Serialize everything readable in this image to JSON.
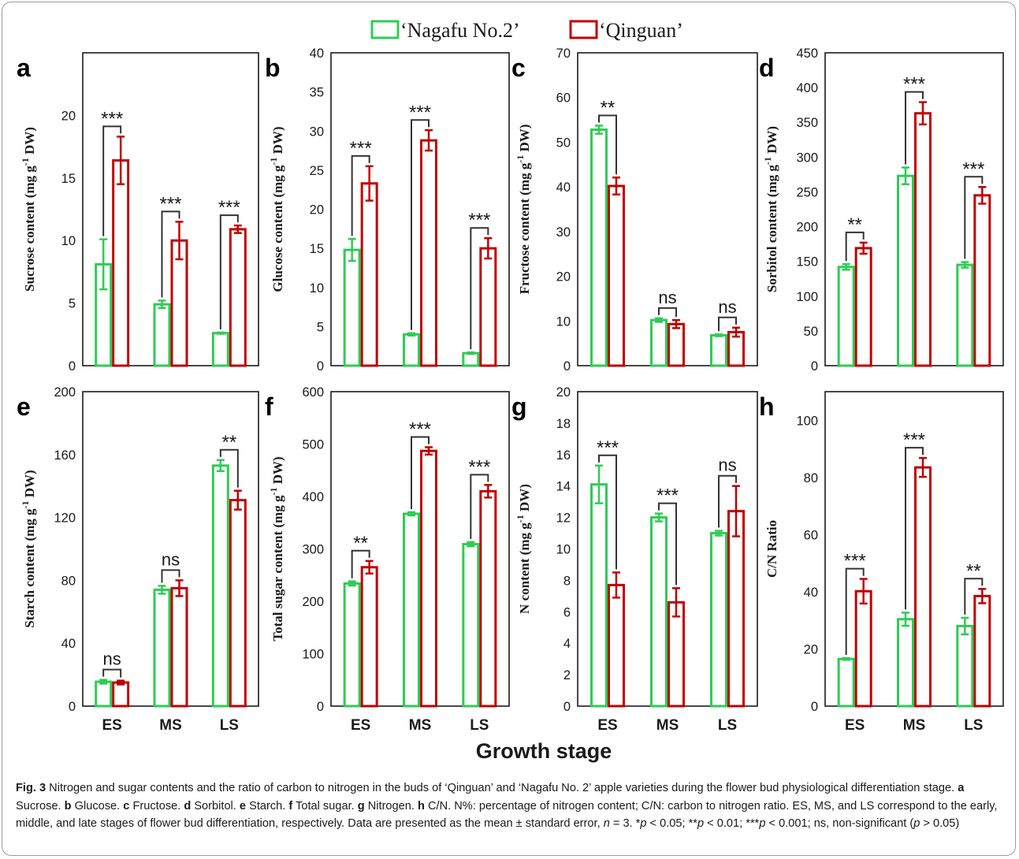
{
  "legend": {
    "items": [
      {
        "label": "‘Nagafu No.2’",
        "color": "#2ecc55"
      },
      {
        "label": "‘Qinguan’",
        "color": "#c00000"
      }
    ],
    "position": "top-center"
  },
  "shared_xlabel": "Growth stage",
  "caption": {
    "fig_label": "Fig. 3",
    "main": " Nitrogen and sugar contents and the ratio of carbon to nitrogen in the buds of ‘Qinguan’ and ‘Nagafu No. 2’ apple varieties during the flower bud physiological differentiation stage. ",
    "panels": [
      {
        "letter": "a",
        "text": " Sucrose. "
      },
      {
        "letter": "b",
        "text": " Glucose. "
      },
      {
        "letter": "c",
        "text": " Fructose. "
      },
      {
        "letter": "d",
        "text": " Sorbitol. "
      },
      {
        "letter": "e",
        "text": " Starch. "
      },
      {
        "letter": "f",
        "text": " Total sugar. "
      },
      {
        "letter": "g",
        "text": " Nitrogen. "
      },
      {
        "letter": "h",
        "text": " C/N. "
      }
    ],
    "rest1": "N%: percentage of nitrogen content; C/N: carbon to nitrogen ratio. ES, MS, and LS correspond to the early, middle, and late stages of flower bud differentiation, respectively. Data are presented as the mean ± standard error, ",
    "n_var": "n",
    "n_rest": " = 3. *",
    "p1": "p",
    "p1_rest": " < 0.05; **",
    "p2": "p",
    "p2_rest": " < 0.01; ***",
    "p3": "p",
    "p3_rest": " < 0.001; ns, non-significant (",
    "p4": "p",
    "p4_rest": " > 0.05)"
  },
  "chart_data": [
    {
      "panel": "a",
      "type": "bar",
      "categories": [
        "ES",
        "MS",
        "LS"
      ],
      "ylabel": "Sucrose content (mg g-1 DW)",
      "ylim": [
        0,
        25
      ],
      "yticks": [
        0,
        5,
        10,
        15,
        20
      ],
      "show_x": false,
      "series": [
        {
          "name": "‘Nagafu No.2’",
          "values": [
            8.1,
            4.9,
            2.6
          ],
          "errors": [
            2.0,
            0.3,
            0.05
          ]
        },
        {
          "name": "‘Qinguan’",
          "values": [
            16.4,
            10.0,
            10.9
          ],
          "errors": [
            1.9,
            1.5,
            0.3
          ]
        }
      ],
      "significance": [
        "***",
        "***",
        "***"
      ]
    },
    {
      "panel": "b",
      "type": "bar",
      "categories": [
        "ES",
        "MS",
        "LS"
      ],
      "ylabel": "Glucose content (mg g-1 DW)",
      "ylim": [
        0,
        40
      ],
      "yticks": [
        0,
        5,
        10,
        15,
        20,
        25,
        30,
        35,
        40
      ],
      "show_x": false,
      "series": [
        {
          "name": "‘Nagafu No.2’",
          "values": [
            14.8,
            4.0,
            1.6
          ],
          "errors": [
            1.4,
            0.15,
            0.1
          ]
        },
        {
          "name": "‘Qinguan’",
          "values": [
            23.3,
            28.8,
            15.0
          ],
          "errors": [
            2.2,
            1.3,
            1.3
          ]
        }
      ],
      "significance": [
        "***",
        "***",
        "***"
      ]
    },
    {
      "panel": "c",
      "type": "bar",
      "categories": [
        "ES",
        "MS",
        "LS"
      ],
      "ylabel": "Fructose content (mg g-1 DW)",
      "ylim": [
        0,
        70
      ],
      "yticks": [
        0,
        10,
        20,
        30,
        40,
        50,
        60,
        70
      ],
      "show_x": false,
      "series": [
        {
          "name": "‘Nagafu No.2’",
          "values": [
            52.8,
            10.2,
            6.8
          ],
          "errors": [
            0.9,
            0.4,
            0.2
          ]
        },
        {
          "name": "‘Qinguan’",
          "values": [
            40.2,
            9.3,
            7.5
          ],
          "errors": [
            1.9,
            0.9,
            1.0
          ]
        }
      ],
      "significance": [
        "**",
        "ns",
        "ns"
      ]
    },
    {
      "panel": "d",
      "type": "bar",
      "categories": [
        "ES",
        "MS",
        "LS"
      ],
      "ylabel": "Sorbitol content (mg g-1 DW)",
      "ylim": [
        0,
        450
      ],
      "yticks": [
        0,
        50,
        100,
        150,
        200,
        250,
        300,
        350,
        400,
        450
      ],
      "show_x": false,
      "series": [
        {
          "name": "‘Nagafu No.2’",
          "values": [
            142,
            273,
            145
          ],
          "errors": [
            4,
            12,
            4
          ]
        },
        {
          "name": "‘Qinguan’",
          "values": [
            169,
            363,
            245
          ],
          "errors": [
            8,
            16,
            12
          ]
        }
      ],
      "significance": [
        "**",
        "***",
        "***"
      ]
    },
    {
      "panel": "e",
      "type": "bar",
      "categories": [
        "ES",
        "MS",
        "LS"
      ],
      "ylabel": "Starch content (mg g-1 DW)",
      "ylim": [
        0,
        200
      ],
      "yticks": [
        0,
        40,
        80,
        120,
        160,
        200
      ],
      "show_x": true,
      "series": [
        {
          "name": "‘Nagafu No.2’",
          "values": [
            15.5,
            74,
            153
          ],
          "errors": [
            1.2,
            2.5,
            3.5
          ]
        },
        {
          "name": "‘Qinguan’",
          "values": [
            15,
            75,
            131
          ],
          "errors": [
            1.2,
            5,
            6
          ]
        }
      ],
      "significance": [
        "ns",
        "ns",
        "**"
      ]
    },
    {
      "panel": "f",
      "type": "bar",
      "categories": [
        "ES",
        "MS",
        "LS"
      ],
      "ylabel": "Total sugar content (mg g-1 DW)",
      "ylim": [
        0,
        600
      ],
      "yticks": [
        0,
        100,
        200,
        300,
        400,
        500,
        600
      ],
      "show_x": true,
      "series": [
        {
          "name": "‘Nagafu No.2’",
          "values": [
            234,
            367,
            309
          ],
          "errors": [
            4,
            3,
            4
          ]
        },
        {
          "name": "‘Qinguan’",
          "values": [
            265,
            487,
            410
          ],
          "errors": [
            12,
            7,
            12
          ]
        }
      ],
      "significance": [
        "**",
        "***",
        "***"
      ]
    },
    {
      "panel": "g",
      "type": "bar",
      "categories": [
        "ES",
        "MS",
        "LS"
      ],
      "ylabel": "N content (mg g-1 DW)",
      "ylim": [
        0,
        20
      ],
      "yticks": [
        0,
        2,
        4,
        6,
        8,
        10,
        12,
        14,
        16,
        18,
        20
      ],
      "show_x": true,
      "series": [
        {
          "name": "‘Nagafu No.2’",
          "values": [
            14.1,
            12.0,
            11.0
          ],
          "errors": [
            1.2,
            0.25,
            0.15
          ]
        },
        {
          "name": "‘Qinguan’",
          "values": [
            7.7,
            6.6,
            12.4
          ],
          "errors": [
            0.8,
            0.9,
            1.6
          ]
        }
      ],
      "significance": [
        "***",
        "***",
        "ns"
      ]
    },
    {
      "panel": "h",
      "type": "bar",
      "categories": [
        "ES",
        "MS",
        "LS"
      ],
      "ylabel": "C/N Ratio",
      "ylim": [
        0,
        110
      ],
      "yticks": [
        0,
        20,
        40,
        60,
        80,
        100
      ],
      "show_x": true,
      "series": [
        {
          "name": "‘Nagafu No.2’",
          "values": [
            16.5,
            30.4,
            28.0
          ],
          "errors": [
            0.3,
            2.3,
            2.9
          ]
        },
        {
          "name": "‘Qinguan’",
          "values": [
            40.2,
            83.5,
            38.5
          ],
          "errors": [
            4.3,
            3.3,
            2.5
          ]
        }
      ],
      "significance": [
        "***",
        "***",
        "**"
      ]
    }
  ]
}
